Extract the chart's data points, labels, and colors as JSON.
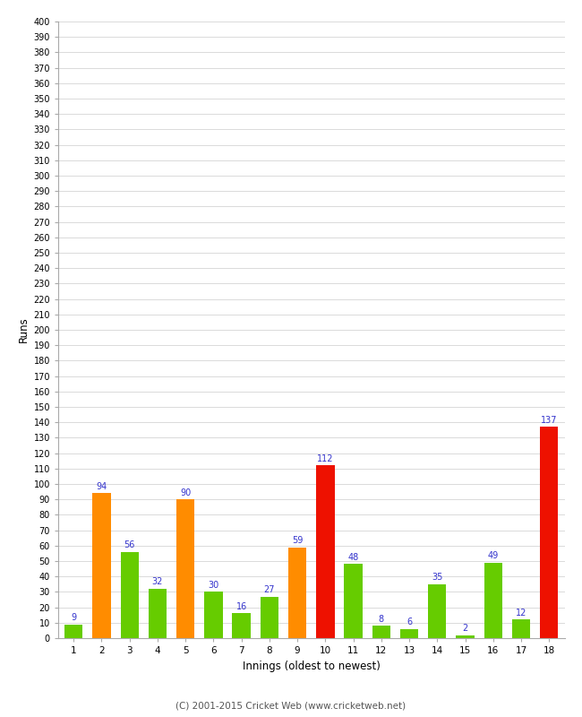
{
  "xlabel": "Innings (oldest to newest)",
  "ylabel": "Runs",
  "categories": [
    "1",
    "2",
    "3",
    "4",
    "5",
    "6",
    "7",
    "8",
    "9",
    "10",
    "11",
    "12",
    "13",
    "14",
    "15",
    "16",
    "17",
    "18"
  ],
  "values": [
    9,
    94,
    56,
    32,
    90,
    30,
    16,
    27,
    59,
    112,
    48,
    8,
    6,
    35,
    2,
    49,
    12,
    137
  ],
  "bar_colors": [
    "#66cc00",
    "#ff8c00",
    "#66cc00",
    "#66cc00",
    "#ff8c00",
    "#66cc00",
    "#66cc00",
    "#66cc00",
    "#ff8c00",
    "#ee1100",
    "#66cc00",
    "#66cc00",
    "#66cc00",
    "#66cc00",
    "#66cc00",
    "#66cc00",
    "#66cc00",
    "#ee1100"
  ],
  "ylim": [
    0,
    400
  ],
  "ytick_step": 10,
  "label_color": "#3333cc",
  "background_color": "#ffffff",
  "grid_color": "#cccccc",
  "footer": "(C) 2001-2015 Cricket Web (www.cricketweb.net)"
}
